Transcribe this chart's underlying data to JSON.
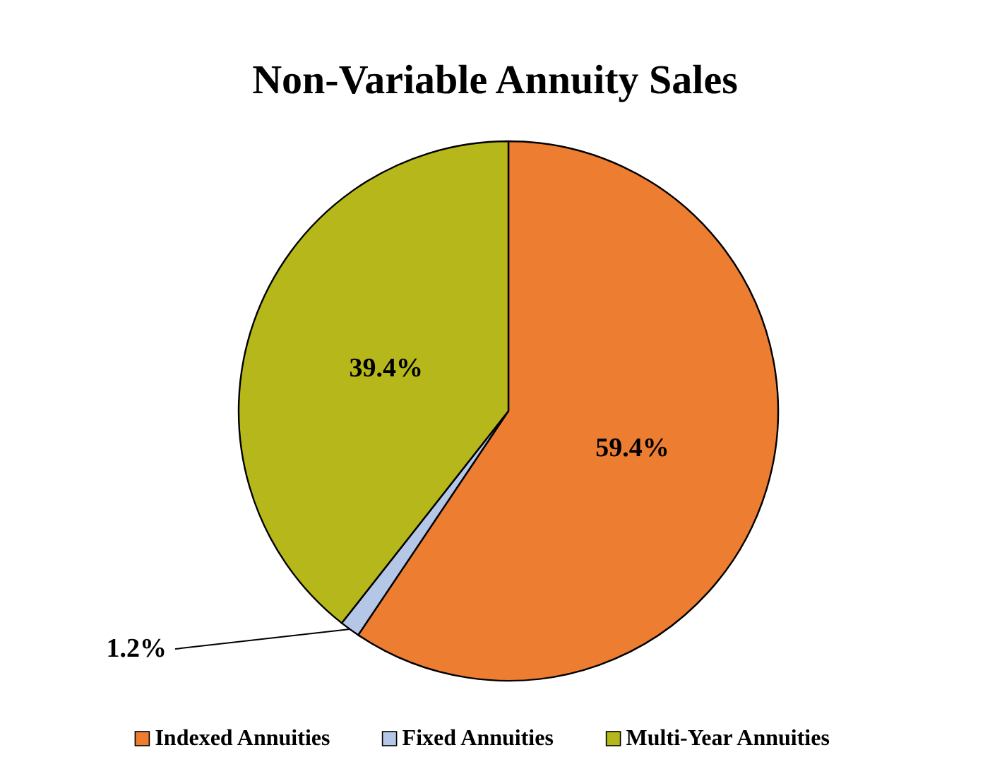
{
  "chart_data": {
    "type": "pie",
    "title": "Non-Variable Annuity Sales",
    "categories": [
      "Indexed Annuities",
      "Fixed Annuities",
      "Multi-Year Annuities"
    ],
    "values": [
      59.4,
      1.2,
      39.4
    ],
    "colors": [
      "#ed7d31",
      "#b4c7e7",
      "#b5b71a"
    ],
    "value_labels": [
      "59.4%",
      "1.2%",
      "39.4%"
    ],
    "legend": "bottom"
  }
}
